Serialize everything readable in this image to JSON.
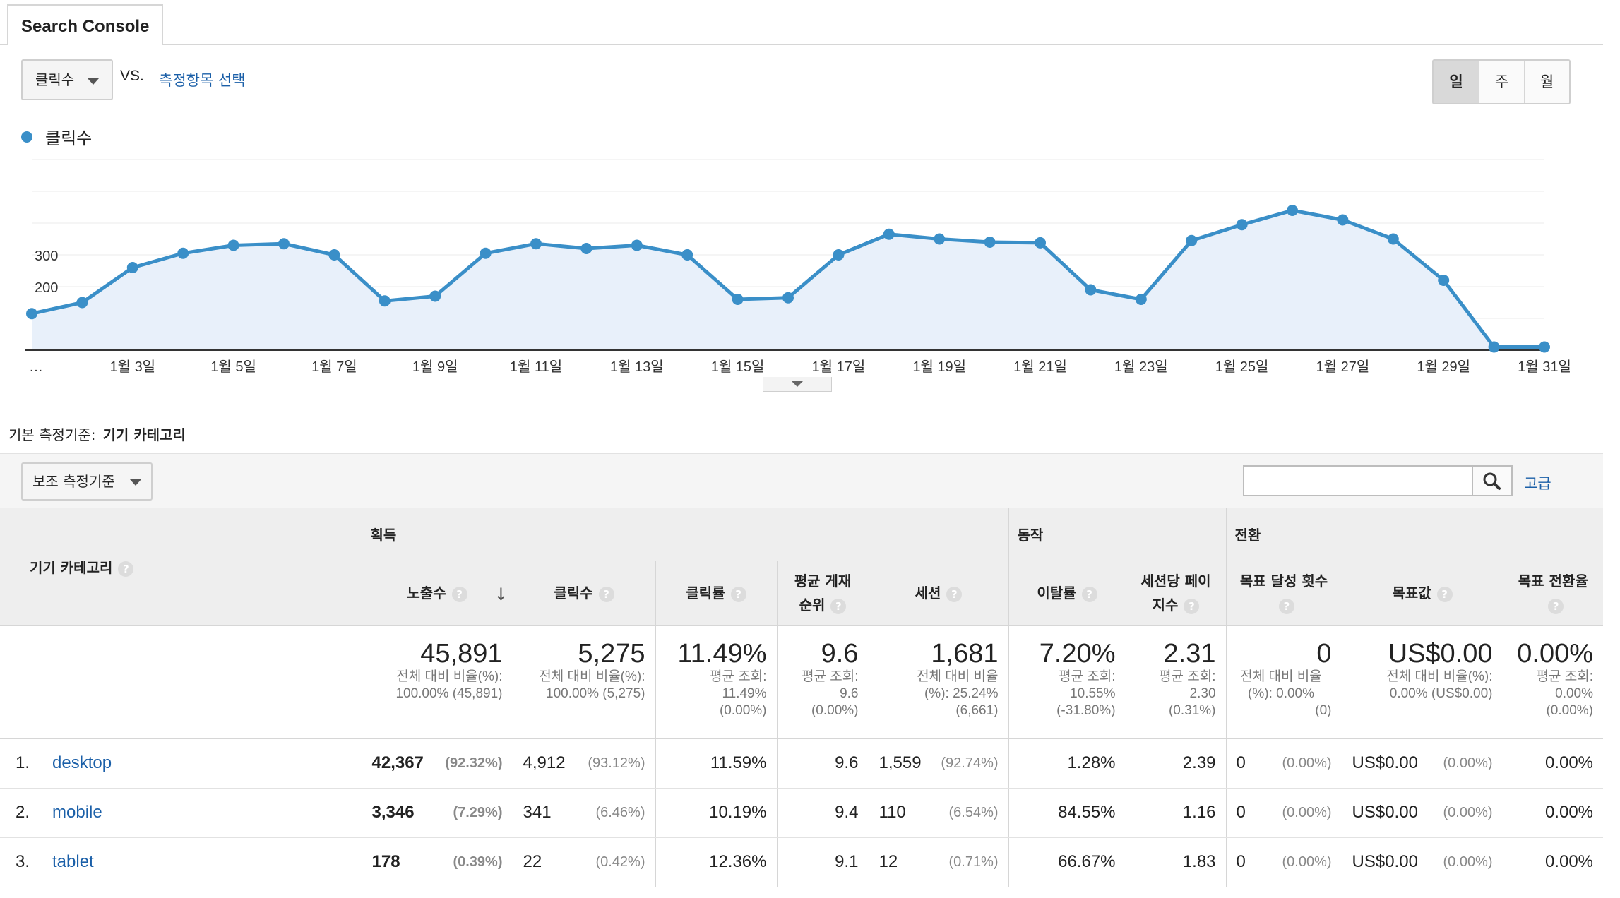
{
  "tab": {
    "title": "Search Console"
  },
  "controls": {
    "metric": "클릭수",
    "vs": "VS.",
    "metric_link": "측정항목 선택",
    "periods": [
      "일",
      "주",
      "월"
    ]
  },
  "legend": {
    "series": "클릭수"
  },
  "chart_data": {
    "type": "area",
    "series": [
      {
        "name": "클릭수",
        "values": [
          115,
          150,
          260,
          305,
          330,
          335,
          300,
          155,
          170,
          305,
          335,
          320,
          330,
          300,
          160,
          165,
          300,
          365,
          350,
          340,
          338,
          190,
          160,
          345,
          395,
          440,
          410,
          350,
          220,
          10,
          10
        ]
      }
    ],
    "x": [
      "…",
      "1월 2일",
      "1월 3일",
      "1월 4일",
      "1월 5일",
      "1월 6일",
      "1월 7일",
      "1월 8일",
      "1월 9일",
      "1월 10일",
      "1월 11일",
      "1월 12일",
      "1월 13일",
      "1월 14일",
      "1월 15일",
      "1월 16일",
      "1월 17일",
      "1월 18일",
      "1월 19일",
      "1월 20일",
      "1월 21일",
      "1월 22일",
      "1월 23일",
      "1월 24일",
      "1월 25일",
      "1월 26일",
      "1월 27일",
      "1월 28일",
      "1월 29일",
      "1월 30일",
      "1월 31일"
    ],
    "x_tick_labels": [
      "…",
      "1월 3일",
      "1월 5일",
      "1월 7일",
      "1월 9일",
      "1월 11일",
      "1월 13일",
      "1월 15일",
      "1월 17일",
      "1월 19일",
      "1월 21일",
      "1월 23일",
      "1월 25일",
      "1월 27일",
      "1월 29일",
      "1월 31일"
    ],
    "y_ticks": [
      100,
      200,
      300
    ],
    "ylim": [
      0,
      600
    ],
    "color": "#3a8fc8",
    "fill": "#e8f0fa"
  },
  "primary_dimension": {
    "label": "기본 측정기준:",
    "value": "기기 카테고리"
  },
  "secondary_dimension": "보조 측정기준",
  "search": {
    "placeholder": "",
    "advanced": "고급"
  },
  "table": {
    "dimension_header": "기기 카테고리",
    "groups": [
      "획득",
      "동작",
      "전환"
    ],
    "columns": {
      "impressions": "노출수",
      "clicks": "클릭수",
      "ctr": "클릭률",
      "position_1": "평균 게재",
      "position_2": "순위",
      "sessions": "세션",
      "bounce": "이탈률",
      "pages_1": "세션당 페이",
      "pages_2": "지수",
      "goal_completions": "목표 달성 횟수",
      "goal_value": "목표값",
      "goal_rate": "목표 전환율"
    },
    "summary": {
      "impressions": {
        "value": "45,891",
        "l1": "전체 대비 비율(%):",
        "l2": "100.00% (45,891)"
      },
      "clicks": {
        "value": "5,275",
        "l1": "전체 대비 비율(%):",
        "l2": "100.00% (5,275)"
      },
      "ctr": {
        "value": "11.49%",
        "l1": "평균 조회:",
        "l2": "11.49%",
        "l3": "(0.00%)"
      },
      "position": {
        "value": "9.6",
        "l1": "평균 조회:",
        "l2": "9.6",
        "l3": "(0.00%)"
      },
      "sessions": {
        "value": "1,681",
        "l1": "전체 대비 비율",
        "l2": "(%): 25.24%",
        "l3": "(6,661)"
      },
      "bounce": {
        "value": "7.20%",
        "l1": "평균 조회:",
        "l2": "10.55%",
        "l3": "(-31.80%)"
      },
      "pages": {
        "value": "2.31",
        "l1": "평균 조회:",
        "l2": "2.30",
        "l3": "(0.31%)"
      },
      "goal_completions": {
        "value": "0",
        "l1": "전체 대비 비율",
        "l2": "(%): 0.00%",
        "l3": "(0)"
      },
      "goal_value": {
        "value": "US$0.00",
        "l1": "전체 대비 비율(%):",
        "l2": "0.00% (US$0.00)"
      },
      "goal_rate": {
        "value": "0.00%",
        "l1": "평균 조회:",
        "l2": "0.00%",
        "l3": "(0.00%)"
      }
    },
    "rows": [
      {
        "idx": "1.",
        "name": "desktop",
        "impressions": "42,367",
        "impressions_pct": "(92.32%)",
        "clicks": "4,912",
        "clicks_pct": "(93.12%)",
        "ctr": "11.59%",
        "position": "9.6",
        "sessions": "1,559",
        "sessions_pct": "(92.74%)",
        "bounce": "1.28%",
        "pages": "2.39",
        "goals": "0",
        "goals_pct": "(0.00%)",
        "value": "US$0.00",
        "value_pct": "(0.00%)",
        "rate": "0.00%"
      },
      {
        "idx": "2.",
        "name": "mobile",
        "impressions": "3,346",
        "impressions_pct": "(7.29%)",
        "clicks": "341",
        "clicks_pct": "(6.46%)",
        "ctr": "10.19%",
        "position": "9.4",
        "sessions": "110",
        "sessions_pct": "(6.54%)",
        "bounce": "84.55%",
        "pages": "1.16",
        "goals": "0",
        "goals_pct": "(0.00%)",
        "value": "US$0.00",
        "value_pct": "(0.00%)",
        "rate": "0.00%"
      },
      {
        "idx": "3.",
        "name": "tablet",
        "impressions": "178",
        "impressions_pct": "(0.39%)",
        "clicks": "22",
        "clicks_pct": "(0.42%)",
        "ctr": "12.36%",
        "position": "9.1",
        "sessions": "12",
        "sessions_pct": "(0.71%)",
        "bounce": "66.67%",
        "pages": "1.83",
        "goals": "0",
        "goals_pct": "(0.00%)",
        "value": "US$0.00",
        "value_pct": "(0.00%)",
        "rate": "0.00%"
      }
    ]
  }
}
